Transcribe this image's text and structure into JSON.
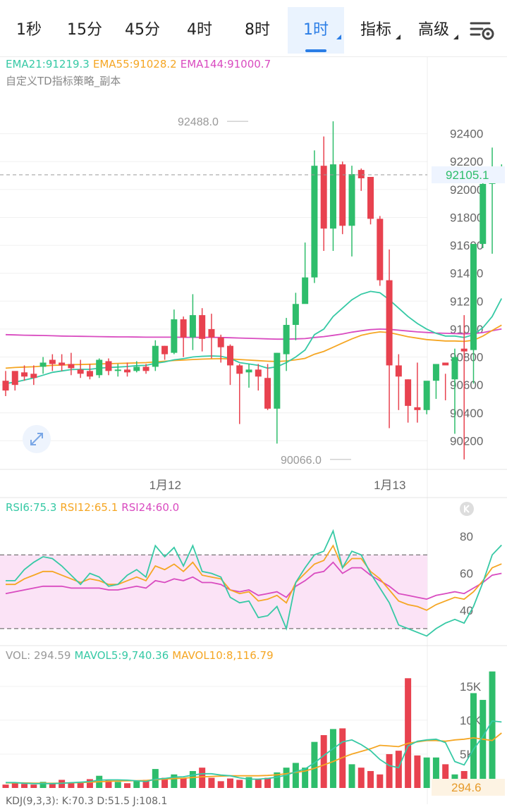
{
  "tabs": [
    {
      "label": "1秒",
      "active": false,
      "dropdown": false
    },
    {
      "label": "15分",
      "active": false,
      "dropdown": false
    },
    {
      "label": "45分",
      "active": false,
      "dropdown": false
    },
    {
      "label": "4时",
      "active": false,
      "dropdown": false
    },
    {
      "label": "8时",
      "active": false,
      "dropdown": false
    },
    {
      "label": "1时",
      "active": true,
      "dropdown": true
    },
    {
      "label": "指标",
      "active": false,
      "dropdown": true
    },
    {
      "label": "高级",
      "active": false,
      "dropdown": true
    }
  ],
  "settings_icon": "chart-settings-icon",
  "colors": {
    "up": "#2ebd6b",
    "down": "#e8424f",
    "ema21": "#36c9a5",
    "ema55": "#f5a623",
    "ema144": "#d94bc0",
    "rsi_band": "#fbe3f6"
  },
  "main_legend": {
    "ema21": "EMA21:91219.3",
    "ema55": "EMA55:91028.2",
    "ema144": "EMA144:91000.7",
    "strategy": "自定义TD指标策略_副本"
  },
  "rsi_legend": {
    "rsi6": "RSI6:75.3",
    "rsi12": "RSI12:65.1",
    "rsi24": "RSI24:60.0"
  },
  "vol_legend": {
    "vol": "VOL: 294.59",
    "mavol5": "MAVOL5:9,740.36",
    "mavol10": "MAVOL10:8,116.79"
  },
  "kdj_legend": "KDJ(9,3,3): K:70.3 D:51.5 J:108.1",
  "chart_data": {
    "type": "candlestick",
    "price_axis": {
      "ticks": [
        "92400",
        "92200",
        "92000",
        "91800",
        "91600",
        "91400",
        "91200",
        "91000",
        "90800",
        "90600",
        "90400",
        "90200"
      ],
      "ylim": [
        90000,
        92600
      ]
    },
    "x_labels": [
      "1月12",
      "1月13"
    ],
    "current_price": "92105.1",
    "max_label": "92488.0",
    "min_label": "90066.0",
    "candles": [
      [
        90630,
        90700,
        90560,
        90520
      ],
      [
        90700,
        90680,
        90600,
        90560
      ],
      [
        90690,
        90740,
        90660,
        90630
      ],
      [
        90680,
        90740,
        90650,
        90600
      ],
      [
        90730,
        90800,
        90760,
        90680
      ],
      [
        90780,
        90820,
        90750,
        90700
      ],
      [
        90760,
        90820,
        90740,
        90700
      ],
      [
        90750,
        90830,
        90720,
        90670
      ],
      [
        90710,
        90780,
        90680,
        90650
      ],
      [
        90700,
        90750,
        90660,
        90640
      ],
      [
        90670,
        90790,
        90780,
        90650
      ],
      [
        90770,
        90790,
        90700,
        90670
      ],
      [
        90700,
        90750,
        90710,
        90660
      ],
      [
        90710,
        90760,
        90690,
        90660
      ],
      [
        90700,
        90770,
        90730,
        90690
      ],
      [
        90730,
        90750,
        90700,
        90680
      ],
      [
        90730,
        90920,
        90880,
        90700
      ],
      [
        90880,
        90880,
        90820,
        90780
      ],
      [
        90830,
        91140,
        91070,
        90820
      ],
      [
        91070,
        91090,
        90940,
        90800
      ],
      [
        90940,
        91250,
        91100,
        90850
      ],
      [
        91100,
        91150,
        90930,
        90840
      ],
      [
        91000,
        91110,
        90940,
        90790
      ],
      [
        90940,
        90960,
        90870,
        90760
      ],
      [
        90880,
        90890,
        90740,
        90600
      ],
      [
        90740,
        90750,
        90680,
        90320
      ],
      [
        90690,
        90750,
        90710,
        90580
      ],
      [
        90710,
        90750,
        90660,
        90560
      ],
      [
        90650,
        90750,
        90430,
        90420
      ],
      [
        90430,
        90830,
        90830,
        90180
      ],
      [
        90820,
        91080,
        91030,
        90700
      ],
      [
        91030,
        91260,
        91180,
        90920
      ],
      [
        91180,
        91620,
        91370,
        91300
      ],
      [
        91370,
        92280,
        92170,
        91330
      ],
      [
        92170,
        92380,
        91720,
        91560
      ],
      [
        91720,
        92488,
        92180,
        91560
      ],
      [
        92180,
        92200,
        91740,
        91680
      ],
      [
        91740,
        92170,
        92110,
        91520
      ],
      [
        92140,
        92150,
        92080,
        91990
      ],
      [
        92090,
        92090,
        91790,
        91750
      ],
      [
        91790,
        91810,
        91350,
        91310
      ],
      [
        91350,
        91570,
        90740,
        90290
      ],
      [
        90740,
        90820,
        90660,
        90420
      ],
      [
        90640,
        90640,
        90450,
        90330
      ],
      [
        90440,
        90760,
        90420,
        90330
      ],
      [
        90420,
        90560,
        90630,
        90390
      ],
      [
        90630,
        90720,
        90750,
        90500
      ],
      [
        90760,
        90680,
        90740,
        90490
      ],
      [
        90640,
        90860,
        90800,
        90250
      ],
      [
        90860,
        91100,
        90840,
        90066
      ],
      [
        90850,
        91470,
        91610,
        90610
      ],
      [
        91610,
        92050,
        92040,
        91580
      ],
      [
        92040,
        92300,
        92090,
        91540
      ],
      [
        92100,
        92180,
        92105,
        92060
      ]
    ],
    "ema21": [
      90610,
      90620,
      90635,
      90650,
      90670,
      90690,
      90700,
      90710,
      90712,
      90712,
      90720,
      90725,
      90728,
      90732,
      90738,
      90740,
      90755,
      90765,
      90780,
      90788,
      90800,
      90805,
      90808,
      90805,
      90790,
      90760,
      90750,
      90740,
      90720,
      90730,
      90760,
      90800,
      90850,
      90960,
      91000,
      91090,
      91150,
      91210,
      91250,
      91270,
      91260,
      91210,
      91150,
      91090,
      91040,
      91000,
      90970,
      90950,
      90950,
      90940,
      90960,
      91010,
      91090,
      91219.3
    ],
    "ema55": [
      90720,
      90725,
      90728,
      90730,
      90735,
      90740,
      90742,
      90745,
      90746,
      90748,
      90750,
      90752,
      90754,
      90756,
      90758,
      90760,
      90765,
      90770,
      90775,
      90778,
      90782,
      90785,
      90787,
      90788,
      90786,
      90782,
      90778,
      90774,
      90770,
      90768,
      90772,
      90780,
      90790,
      90820,
      90840,
      90870,
      90900,
      90930,
      90955,
      90970,
      90980,
      90975,
      90960,
      90945,
      90935,
      90925,
      90920,
      90915,
      90915,
      90912,
      90920,
      90950,
      90990,
      91028.2
    ],
    "ema144": [
      90960,
      90958,
      90956,
      90955,
      90954,
      90952,
      90950,
      90949,
      90948,
      90947,
      90946,
      90945,
      90944,
      90944,
      90943,
      90942,
      90942,
      90942,
      90942,
      90941,
      90941,
      90941,
      90941,
      90940,
      90938,
      90936,
      90934,
      90932,
      90930,
      90928,
      90928,
      90930,
      90932,
      90940,
      90946,
      90955,
      90965,
      90978,
      90988,
      90996,
      91000,
      90998,
      90992,
      90986,
      90980,
      90976,
      90972,
      90970,
      90968,
      90966,
      90968,
      90975,
      90988,
      91000.7
    ],
    "rsi": {
      "levels": [
        "80",
        "60",
        "40"
      ],
      "ylim": [
        25,
        90
      ],
      "guides": [
        70,
        30
      ],
      "rsi6": [
        56,
        56,
        62,
        66,
        69,
        68,
        64,
        59,
        54,
        60,
        58,
        53,
        54,
        59,
        62,
        58,
        75,
        69,
        74,
        64,
        75,
        61,
        60,
        58,
        47,
        44,
        45,
        36,
        37,
        42,
        30,
        55,
        63,
        70,
        72,
        83,
        63,
        72,
        70,
        60,
        52,
        44,
        32,
        30,
        28,
        26,
        30,
        33,
        35,
        33,
        42,
        55,
        70,
        75.3
      ],
      "rsi12": [
        54,
        54,
        57,
        59,
        61,
        61,
        59,
        57,
        55,
        57,
        56,
        54,
        54,
        56,
        58,
        56,
        64,
        62,
        65,
        61,
        66,
        59,
        58,
        57,
        51,
        49,
        50,
        45,
        46,
        48,
        44,
        55,
        60,
        65,
        67,
        75,
        63,
        68,
        68,
        61,
        57,
        51,
        45,
        43,
        42,
        40,
        43,
        45,
        47,
        46,
        50,
        56,
        63,
        65.1
      ],
      "rsi24": [
        49,
        50,
        51,
        52,
        53,
        53,
        53,
        52,
        52,
        52,
        52,
        51,
        51,
        52,
        53,
        52,
        56,
        55,
        57,
        56,
        58,
        55,
        55,
        54,
        51,
        50,
        51,
        48,
        49,
        50,
        47,
        53,
        56,
        60,
        61,
        66,
        60,
        63,
        63,
        59,
        56,
        53,
        49,
        48,
        47,
        46,
        48,
        49,
        50,
        49,
        52,
        55,
        59,
        60.0
      ]
    },
    "volume": {
      "ticks": [
        "15K",
        "10K",
        "5K"
      ],
      "ylim": [
        0,
        18000
      ],
      "last_label": "294.6",
      "bars": [
        500,
        700,
        600,
        500,
        900,
        700,
        1200,
        800,
        900,
        1300,
        1800,
        1100,
        900,
        700,
        1000,
        1200,
        2800,
        1500,
        2000,
        1500,
        2500,
        3000,
        1500,
        1000,
        1400,
        1200,
        1600,
        1300,
        1500,
        2300,
        3000,
        3700,
        3000,
        6800,
        7800,
        8700,
        8800,
        3500,
        3000,
        2500,
        2000,
        5000,
        5500,
        16200,
        4800,
        4500,
        4500,
        3500,
        2000,
        2500,
        14000,
        13000,
        17200,
        294.59
      ],
      "mavol5": [
        800,
        800,
        700,
        650,
        650,
        650,
        700,
        780,
        850,
        950,
        1150,
        1200,
        1200,
        1150,
        1050,
        950,
        1300,
        1400,
        1600,
        1650,
        1900,
        2100,
        2100,
        1900,
        1800,
        1500,
        1300,
        1300,
        1400,
        1600,
        1900,
        2400,
        2800,
        3700,
        4800,
        5800,
        6800,
        7100,
        6400,
        5500,
        4200,
        3300,
        3000,
        6200,
        6900,
        7100,
        7200,
        6700,
        3900,
        3400,
        5700,
        7600,
        9900,
        9740.36
      ],
      "mavol10": [
        750,
        750,
        750,
        720,
        700,
        700,
        720,
        760,
        800,
        850,
        920,
        980,
        1020,
        1060,
        1080,
        1100,
        1230,
        1300,
        1380,
        1450,
        1550,
        1650,
        1700,
        1750,
        1800,
        1800,
        1800,
        1800,
        1850,
        1950,
        2100,
        2300,
        2500,
        2900,
        3400,
        3900,
        4500,
        5000,
        5400,
        5800,
        6300,
        6200,
        6100,
        6600,
        6800,
        7000,
        7000,
        6900,
        7100,
        7200,
        7400,
        7200,
        7000,
        8116.79
      ]
    }
  }
}
